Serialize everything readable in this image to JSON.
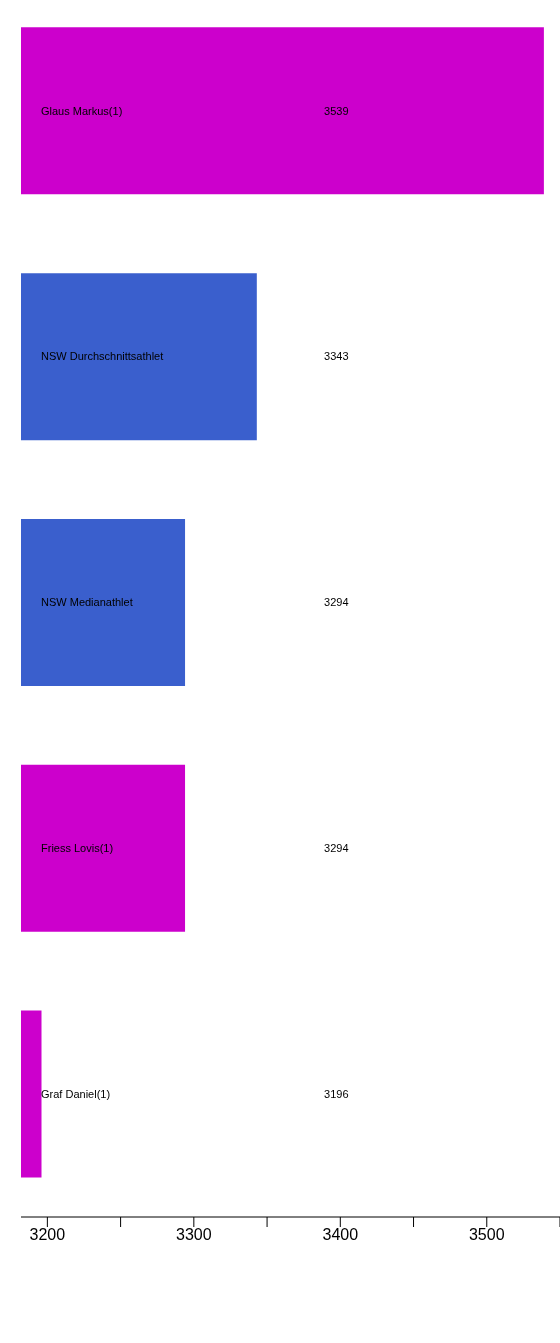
{
  "chart_data": {
    "type": "bar",
    "orientation": "horizontal",
    "categories": [
      "Glaus Markus(1)",
      "NSW Durchschnittsathlet",
      "NSW Medianathlet",
      "Friess Lovis(1)",
      "Graf Daniel(1)"
    ],
    "values": [
      3539,
      3343,
      3294,
      3294,
      3196
    ],
    "colors": [
      "#cc00cc",
      "#3a5fcd",
      "#3a5fcd",
      "#cc00cc",
      "#cc00cc"
    ],
    "xlim": [
      3182,
      3550
    ],
    "xticks": [
      3200,
      {
        "value": 3250,
        "label": null
      },
      3300,
      {
        "value": 3350,
        "label": null
      },
      3400,
      {
        "value": 3450,
        "label": null
      },
      3500,
      {
        "value": 3550,
        "label": null
      }
    ],
    "data_labels": true,
    "grid": false
  }
}
